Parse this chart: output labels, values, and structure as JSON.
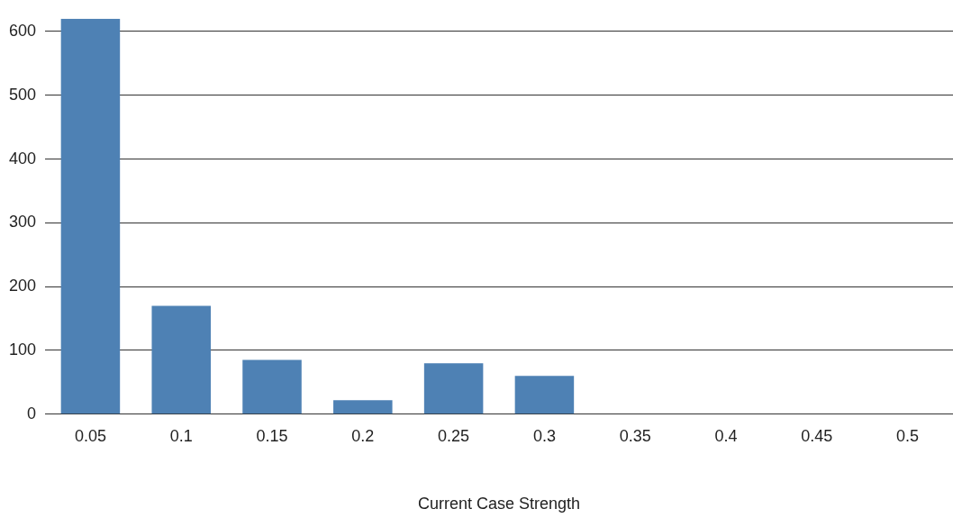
{
  "chart_data": {
    "type": "bar",
    "xlabel": "Current Case Strength",
    "categories": [
      "0.05",
      "0.1",
      "0.15",
      "0.2",
      "0.25",
      "0.3",
      "0.35",
      "0.4",
      "0.45",
      "0.5"
    ],
    "values": [
      620,
      170,
      85,
      22,
      80,
      60,
      0,
      0,
      0,
      0
    ],
    "color": "#4e81b4",
    "ylim": [
      0,
      620
    ],
    "yticks": [
      0,
      100,
      200,
      300,
      400,
      500,
      600
    ],
    "grid": "y",
    "legend": false
  }
}
